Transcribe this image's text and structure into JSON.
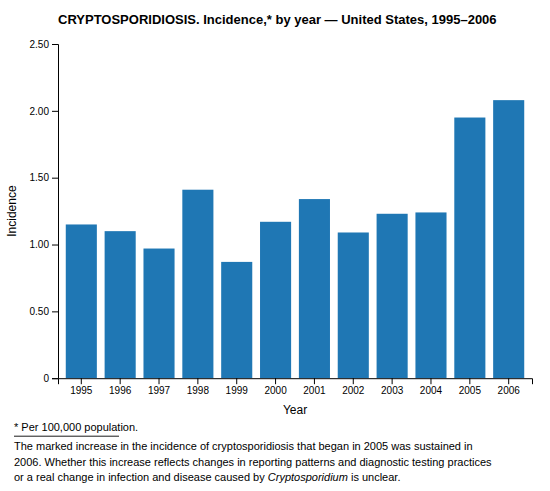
{
  "chart_data": {
    "type": "bar",
    "title": "CRYPTOSPORIDIOSIS. Incidence,* by year — United States, 1995–2006",
    "x_label": "Year",
    "y_label": "Incidence",
    "categories": [
      "1995",
      "1996",
      "1997",
      "1998",
      "1999",
      "2000",
      "2001",
      "2002",
      "2003",
      "2004",
      "2005",
      "2006"
    ],
    "values": [
      1.15,
      1.1,
      0.97,
      1.41,
      0.87,
      1.17,
      1.34,
      1.09,
      1.23,
      1.24,
      1.95,
      2.08
    ],
    "ylim": [
      0,
      2.5
    ],
    "yticks": [
      0,
      {
        "value": 0.5,
        "label": "0.50"
      },
      {
        "value": 1.0,
        "label": "1.00"
      },
      {
        "value": 1.5,
        "label": "1.50"
      },
      {
        "value": 2.0,
        "label": "2.00"
      },
      {
        "value": 2.5,
        "label": "2.50"
      }
    ],
    "grid": false,
    "annotations": [
      "* Per 100,000 population.",
      "The marked increase in the incidence of cryptosporidiosis that began in 2005 was sustained in",
      "2006. Whether this increase reflects changes in reporting patterns and diagnostic testing practices",
      [
        "or a real change in infection and disease caused by ",
        "Cryptosporidium",
        " is unclear."
      ]
    ]
  }
}
